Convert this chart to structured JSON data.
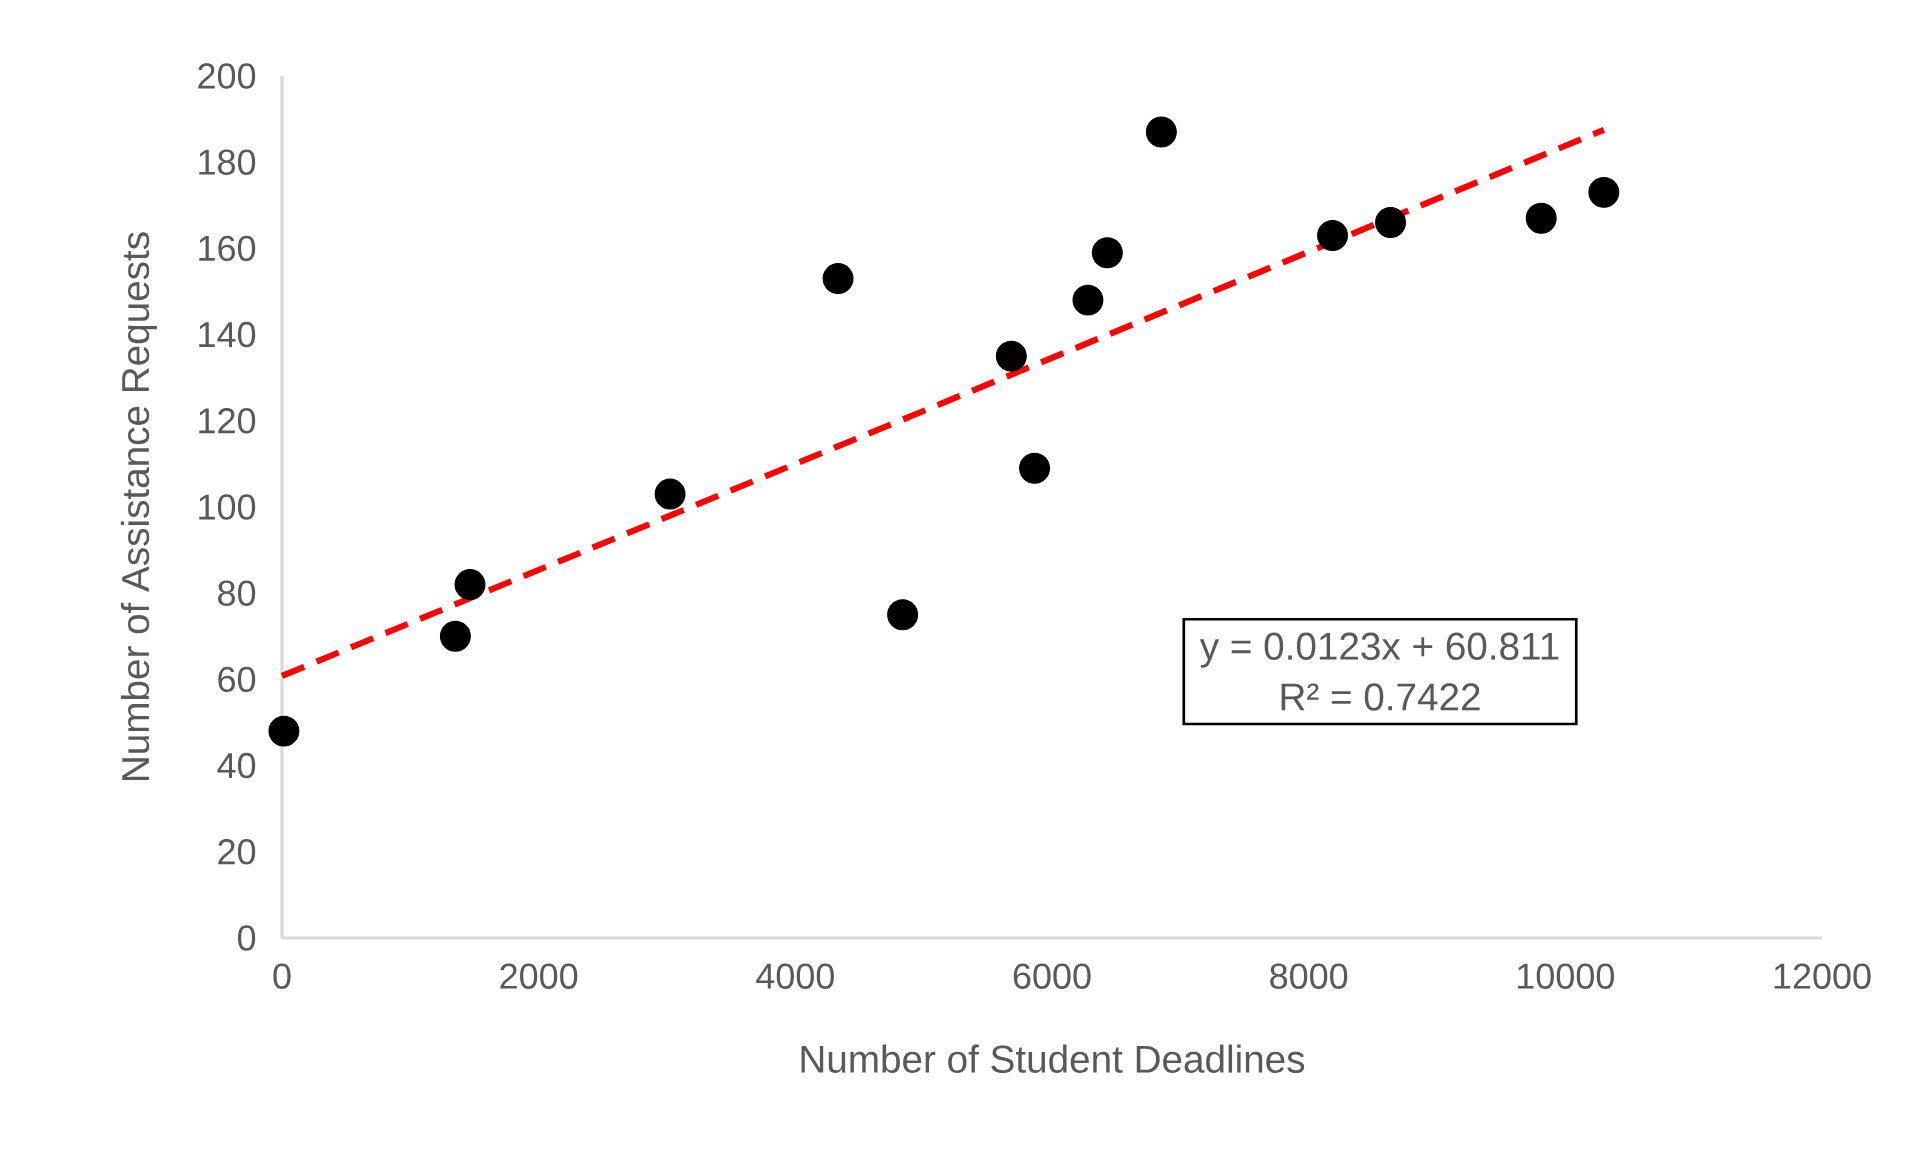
{
  "chart_data": {
    "type": "scatter",
    "xlabel": "Number of Student Deadlines",
    "ylabel": "Number of Assistance Requests",
    "xlim": [
      0,
      12000
    ],
    "ylim": [
      0,
      200
    ],
    "xticks": [
      0,
      2000,
      4000,
      6000,
      8000,
      10000,
      12000
    ],
    "yticks": [
      0,
      20,
      40,
      60,
      80,
      100,
      120,
      140,
      160,
      180,
      200
    ],
    "annotations": [
      "y = 0.0123x + 60.811",
      "R² = 0.7422"
    ],
    "series": [
      {
        "color": "#000000",
        "marker": "circle",
        "x": [
          15,
          1351,
          1465,
          3024,
          4333,
          4836,
          5683,
          5864,
          6280,
          6431,
          6852,
          8186,
          8638,
          9812,
          10300
        ],
        "values": [
          48,
          70,
          82,
          103,
          153,
          75,
          135,
          109,
          148,
          159,
          187,
          163,
          166,
          167,
          173
        ]
      },
      {
        "type": "line",
        "color": "#ff0000",
        "marker": "none",
        "line_style": "dashed",
        "x": [
          0,
          10300
        ],
        "values": [
          60.8,
          187.5
        ]
      }
    ]
  }
}
